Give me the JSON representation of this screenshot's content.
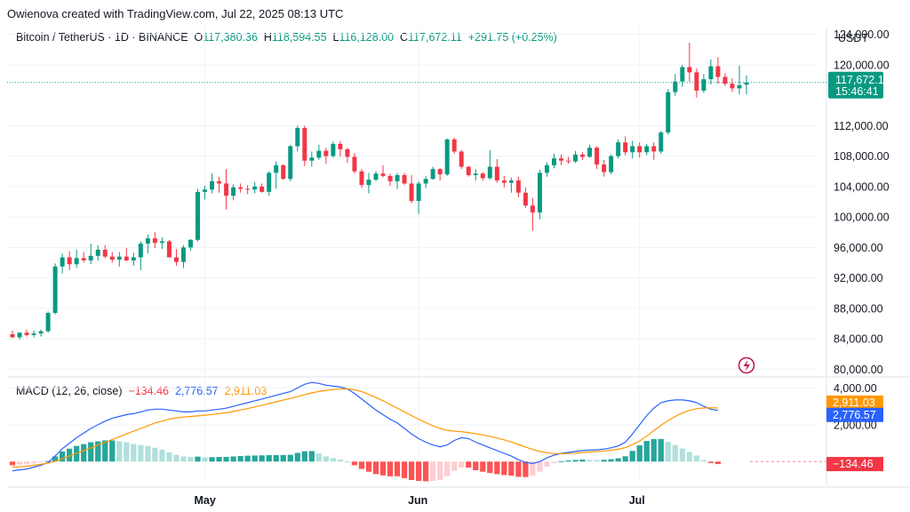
{
  "header": {
    "credit": "Owienova created with TradingView.com, Jul 22, 2025 08:13 UTC",
    "symbol": "Bitcoin / TetherUS · 1D · BINANCE",
    "open_label": "O",
    "open": "117,380.36",
    "high_label": "H",
    "high": "118,594.55",
    "low_label": "L",
    "low": "116,128.00",
    "close_label": "C",
    "close": "117,672.11",
    "change": "+291.75 (+0.25%)",
    "currency": "USDT"
  },
  "price_badge": {
    "price": "117,672.11",
    "countdown": "15:46:41"
  },
  "macd": {
    "title": "MACD (12, 26, close)",
    "hist_value": "−134.46",
    "macd_value": "2,776.57",
    "signal_value": "2,911.03",
    "badges": {
      "signal": "2,911.03",
      "macd": "2,776.57",
      "hist": "−134.46"
    }
  },
  "colors": {
    "up": "#089981",
    "down": "#f23645",
    "hist_up_strong": "#26a69a",
    "hist_up_weak": "#b2dfdb",
    "hist_down_strong": "#ff5252",
    "hist_down_weak": "#ffcdd2",
    "macd_line": "#2962ff",
    "signal_line": "#ff9800"
  },
  "icons": {
    "logo": "lightning-bolt-icon"
  },
  "chart_data": [
    {
      "type": "candlestick",
      "title": "Bitcoin / TetherUS · 1D · BINANCE",
      "ylim": [
        79000,
        125000
      ],
      "y_ticks": [
        "124,000.00",
        "120,000.00",
        "112,000.00",
        "108,000.00",
        "104,000.00",
        "100,000.00",
        "96,000.00",
        "92,000.00",
        "88,000.00",
        "84,000.00",
        "80,000.00"
      ],
      "x_ticks": [
        "May",
        "Jun",
        "Jul"
      ],
      "grid": true,
      "last_price": 117672.11,
      "candles": [
        [
          84600,
          85100,
          84100,
          84200
        ],
        [
          84200,
          84900,
          83900,
          84800
        ],
        [
          84800,
          85200,
          84300,
          84500
        ],
        [
          84500,
          85100,
          84200,
          84700
        ],
        [
          84700,
          85200,
          84300,
          85000
        ],
        [
          85000,
          87600,
          84800,
          87400
        ],
        [
          87400,
          93900,
          87200,
          93500
        ],
        [
          93500,
          95200,
          92600,
          94700
        ],
        [
          94700,
          95500,
          93000,
          93800
        ],
        [
          93800,
          95700,
          93300,
          94600
        ],
        [
          94600,
          95400,
          94000,
          94300
        ],
        [
          94300,
          96500,
          93800,
          94900
        ],
        [
          94900,
          96300,
          94300,
          95700
        ],
        [
          95700,
          96300,
          94600,
          94800
        ],
        [
          94800,
          95400,
          94000,
          94400
        ],
        [
          94400,
          95400,
          93500,
          94800
        ],
        [
          94800,
          95900,
          94200,
          94300
        ],
        [
          94300,
          95300,
          93600,
          94700
        ],
        [
          94700,
          96800,
          93000,
          96500
        ],
        [
          96500,
          97700,
          95200,
          97200
        ],
        [
          97200,
          98000,
          95900,
          96600
        ],
        [
          96600,
          97300,
          95800,
          96800
        ],
        [
          96800,
          97000,
          94700,
          94700
        ],
        [
          94700,
          95800,
          93600,
          94100
        ],
        [
          94100,
          96300,
          93300,
          96000
        ],
        [
          96000,
          97100,
          95600,
          97000
        ],
        [
          97000,
          103700,
          96800,
          103300
        ],
        [
          103300,
          104100,
          102300,
          103600
        ],
        [
          103600,
          105700,
          103100,
          104700
        ],
        [
          104700,
          105300,
          103200,
          104400
        ],
        [
          104400,
          106300,
          101000,
          102800
        ],
        [
          102800,
          104300,
          102200,
          103900
        ],
        [
          103900,
          104400,
          103200,
          103700
        ],
        [
          103700,
          104200,
          103000,
          103600
        ],
        [
          103600,
          104600,
          103100,
          104000
        ],
        [
          104000,
          104400,
          103200,
          103300
        ],
        [
          103300,
          106000,
          102800,
          105800
        ],
        [
          105800,
          107300,
          103700,
          106800
        ],
        [
          106800,
          106900,
          104900,
          105000
        ],
        [
          105000,
          109500,
          104700,
          109300
        ],
        [
          109300,
          112000,
          108600,
          111700
        ],
        [
          111700,
          112000,
          106700,
          107400
        ],
        [
          107400,
          108600,
          106600,
          107800
        ],
        [
          107800,
          109500,
          107500,
          108700
        ],
        [
          108700,
          109100,
          107000,
          108000
        ],
        [
          108000,
          109900,
          107800,
          109600
        ],
        [
          109600,
          110000,
          107900,
          108900
        ],
        [
          108900,
          109100,
          107100,
          107900
        ],
        [
          107900,
          108400,
          105700,
          106000
        ],
        [
          106000,
          106300,
          103800,
          104200
        ],
        [
          104200,
          105800,
          103100,
          104900
        ],
        [
          104900,
          106000,
          104700,
          105700
        ],
        [
          105700,
          106800,
          105200,
          105400
        ],
        [
          105400,
          105700,
          104100,
          104700
        ],
        [
          104700,
          105800,
          103700,
          105500
        ],
        [
          105500,
          105800,
          104200,
          104400
        ],
        [
          104400,
          105500,
          101800,
          102100
        ],
        [
          102100,
          104700,
          100400,
          104400
        ],
        [
          104400,
          105400,
          103800,
          105000
        ],
        [
          105000,
          106600,
          104900,
          106300
        ],
        [
          106300,
          106400,
          104800,
          105600
        ],
        [
          105600,
          110300,
          105400,
          110200
        ],
        [
          110200,
          110400,
          108300,
          108600
        ],
        [
          108600,
          108800,
          106300,
          106600
        ],
        [
          106600,
          106700,
          105300,
          105500
        ],
        [
          105500,
          106300,
          104800,
          105700
        ],
        [
          105700,
          105900,
          104800,
          105100
        ],
        [
          105100,
          108800,
          104900,
          106600
        ],
        [
          106600,
          107600,
          104500,
          104800
        ],
        [
          104800,
          105400,
          103900,
          104500
        ],
        [
          104500,
          105200,
          103200,
          104800
        ],
        [
          104800,
          105300,
          102600,
          103200
        ],
        [
          103200,
          103900,
          101200,
          101500
        ],
        [
          101500,
          102500,
          98200,
          100600
        ],
        [
          100600,
          106200,
          99700,
          105800
        ],
        [
          105800,
          107200,
          105300,
          106800
        ],
        [
          106800,
          108300,
          106400,
          107700
        ],
        [
          107700,
          108200,
          106800,
          107400
        ],
        [
          107400,
          107900,
          107000,
          107300
        ],
        [
          107300,
          108700,
          107100,
          108200
        ],
        [
          108200,
          108500,
          107500,
          107900
        ],
        [
          107900,
          109500,
          107800,
          109100
        ],
        [
          109100,
          109300,
          106300,
          106900
        ],
        [
          106900,
          107500,
          105300,
          105900
        ],
        [
          105900,
          108200,
          105600,
          108000
        ],
        [
          108000,
          110200,
          107700,
          109800
        ],
        [
          109800,
          110600,
          108100,
          108500
        ],
        [
          108500,
          110000,
          107700,
          109300
        ],
        [
          109300,
          109800,
          107800,
          108500
        ],
        [
          108500,
          109600,
          108100,
          109300
        ],
        [
          109300,
          109800,
          107500,
          108600
        ],
        [
          108600,
          111300,
          108300,
          111100
        ],
        [
          111100,
          116800,
          110800,
          116400
        ],
        [
          116400,
          118800,
          115900,
          117800
        ],
        [
          117800,
          120000,
          117100,
          119700
        ],
        [
          119700,
          122900,
          117800,
          119000
        ],
        [
          119000,
          119500,
          115700,
          116600
        ],
        [
          116600,
          118800,
          116300,
          118100
        ],
        [
          118100,
          120700,
          117400,
          119800
        ],
        [
          119800,
          121000,
          117500,
          118400
        ],
        [
          118400,
          118900,
          117200,
          117500
        ],
        [
          117500,
          118200,
          116400,
          116900
        ],
        [
          116900,
          119900,
          116100,
          117300
        ],
        [
          117380.36,
          118594.55,
          116128.0,
          117672.11
        ]
      ]
    },
    {
      "type": "line",
      "title": "MACD (12, 26, close)",
      "ylim": [
        -1000,
        4600
      ],
      "y_ticks": [
        "4,000.00",
        "2,000.00"
      ],
      "series": [
        {
          "name": "MACD",
          "values": [
            -500,
            -450,
            -400,
            -300,
            -200,
            -50,
            300,
            700,
            1000,
            1300,
            1550,
            1800,
            2000,
            2200,
            2350,
            2450,
            2550,
            2600,
            2700,
            2800,
            2850,
            2850,
            2800,
            2750,
            2700,
            2700,
            2750,
            2750,
            2800,
            2850,
            2900,
            3000,
            3100,
            3200,
            3300,
            3400,
            3500,
            3600,
            3700,
            3800,
            4000,
            4200,
            4300,
            4250,
            4150,
            4100,
            4050,
            3950,
            3700,
            3400,
            3100,
            2800,
            2550,
            2300,
            2100,
            1800,
            1500,
            1250,
            1050,
            900,
            800,
            900,
            1150,
            1300,
            1250,
            1050,
            900,
            750,
            600,
            450,
            300,
            100,
            -50,
            -100,
            0,
            200,
            350,
            450,
            500,
            550,
            600,
            620,
            640,
            680,
            750,
            850,
            1050,
            1500,
            2000,
            2500,
            2900,
            3200,
            3300,
            3350,
            3350,
            3300,
            3200,
            3000,
            2850,
            2776.57
          ]
        },
        {
          "name": "Signal",
          "values": [
            -300,
            -280,
            -250,
            -200,
            -150,
            -80,
            20,
            150,
            300,
            450,
            600,
            750,
            900,
            1050,
            1200,
            1350,
            1500,
            1650,
            1800,
            1950,
            2100,
            2200,
            2300,
            2380,
            2420,
            2450,
            2480,
            2520,
            2560,
            2600,
            2650,
            2720,
            2800,
            2880,
            2970,
            3060,
            3150,
            3250,
            3340,
            3430,
            3530,
            3640,
            3730,
            3810,
            3870,
            3910,
            3940,
            3950,
            3900,
            3800,
            3650,
            3480,
            3300,
            3100,
            2900,
            2700,
            2500,
            2300,
            2120,
            1950,
            1800,
            1700,
            1650,
            1620,
            1580,
            1520,
            1450,
            1370,
            1280,
            1180,
            1060,
            930,
            790,
            660,
            550,
            480,
            440,
            430,
            440,
            460,
            490,
            520,
            550,
            580,
            620,
            670,
            760,
            920,
            1120,
            1380,
            1680,
            1970,
            2230,
            2450,
            2640,
            2780,
            2870,
            2910,
            2925,
            2911.03
          ]
        }
      ],
      "histogram": [
        -200,
        -170,
        -150,
        -100,
        -50,
        30,
        280,
        550,
        700,
        850,
        950,
        1050,
        1100,
        1150,
        1150,
        1100,
        1050,
        950,
        900,
        850,
        750,
        650,
        500,
        370,
        280,
        250,
        270,
        230,
        240,
        250,
        250,
        280,
        300,
        320,
        330,
        340,
        350,
        350,
        360,
        370,
        470,
        560,
        570,
        440,
        280,
        190,
        110,
        0,
        -200,
        -400,
        -550,
        -680,
        -750,
        -800,
        -800,
        -900,
        -1000,
        -1050,
        -1070,
        -1050,
        -1000,
        -800,
        -500,
        -320,
        -330,
        -470,
        -550,
        -620,
        -680,
        -730,
        -760,
        -830,
        -840,
        -760,
        -550,
        -280,
        -90,
        20,
        60,
        90,
        110,
        100,
        90,
        100,
        130,
        180,
        290,
        580,
        880,
        1120,
        1220,
        1230,
        1070,
        900,
        710,
        520,
        330,
        90,
        -75,
        -134.46
      ]
    }
  ]
}
